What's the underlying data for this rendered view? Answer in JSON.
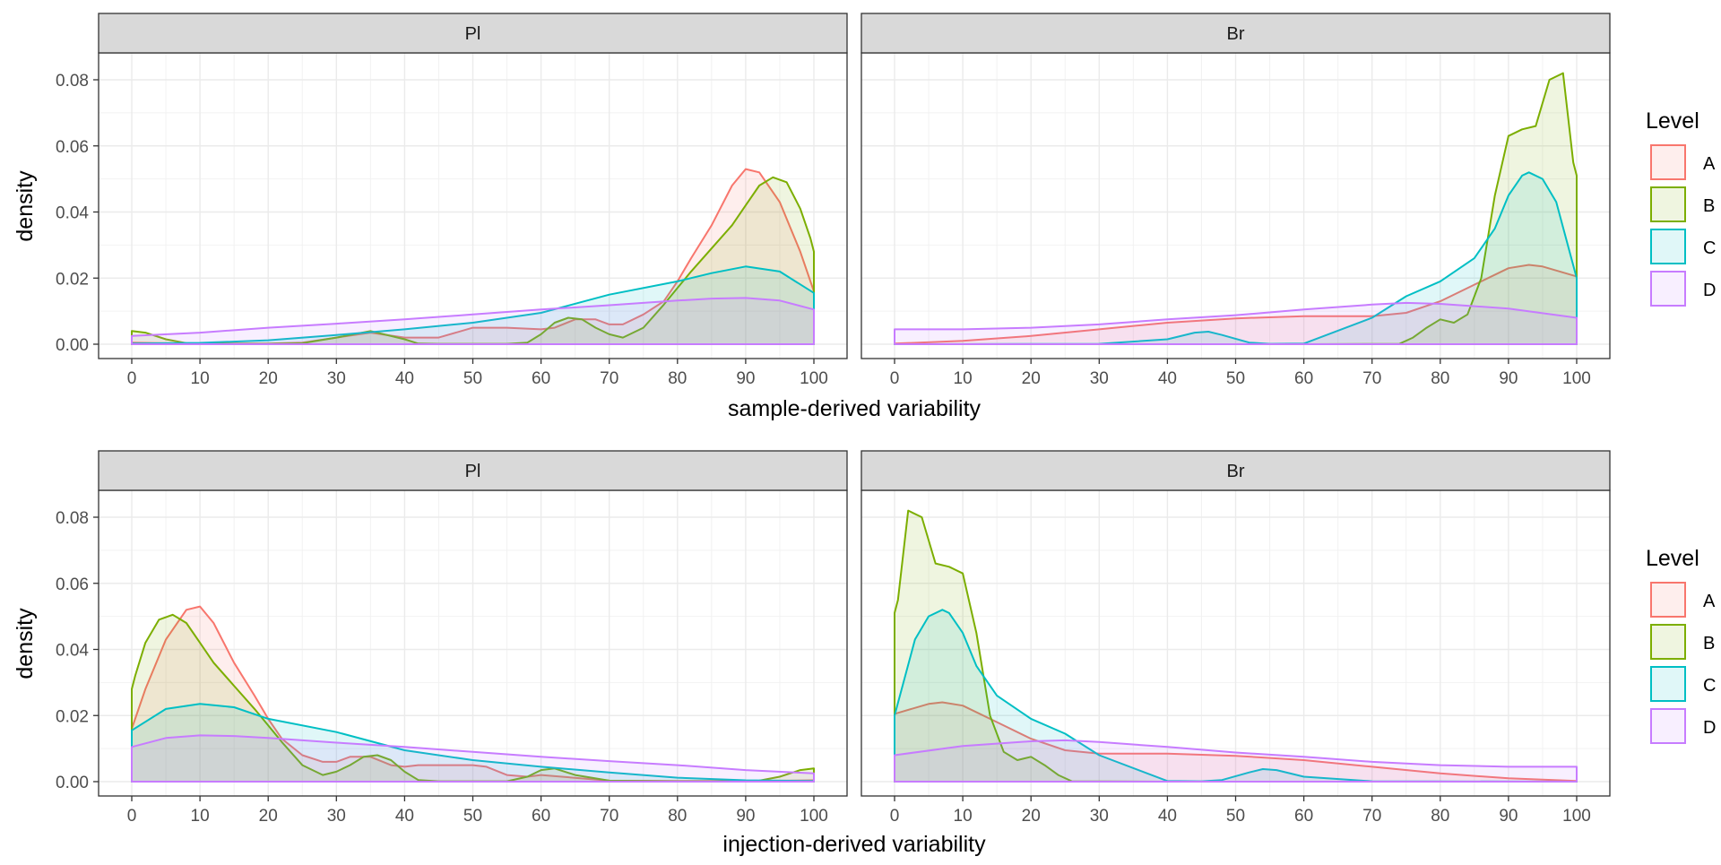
{
  "chart_data": [
    {
      "type": "area",
      "subtype": "density",
      "panels": [
        "Pl",
        "Br"
      ],
      "xlabel": "sample-derived variability",
      "ylabel": "density",
      "xlim": [
        0,
        100
      ],
      "ylim": [
        0,
        0.085
      ],
      "x_ticks": [
        0,
        10,
        20,
        30,
        40,
        50,
        60,
        70,
        80,
        90,
        100
      ],
      "y_ticks": [
        "0.00",
        "0.02",
        "0.04",
        "0.06",
        "0.08"
      ],
      "grid": true,
      "legend_title": "Level",
      "legend_position": "right",
      "series": {
        "Pl": [
          {
            "name": "A",
            "x": [
              0,
              5,
              10,
              20,
              25,
              30,
              35,
              40,
              45,
              50,
              55,
              60,
              62,
              65,
              68,
              70,
              72,
              75,
              78,
              80,
              82,
              85,
              88,
              90,
              92,
              95,
              98,
              100
            ],
            "y": [
              0.0005,
              0.0003,
              0.0002,
              0.0002,
              0.0005,
              0.002,
              0.0035,
              0.002,
              0.002,
              0.005,
              0.005,
              0.0045,
              0.005,
              0.0075,
              0.0075,
              0.006,
              0.006,
              0.009,
              0.013,
              0.019,
              0.026,
              0.036,
              0.048,
              0.053,
              0.052,
              0.043,
              0.028,
              0.016
            ]
          },
          {
            "name": "B",
            "x": [
              0,
              2,
              5,
              8,
              10,
              15,
              20,
              25,
              30,
              35,
              40,
              42,
              45,
              50,
              55,
              58,
              60,
              62,
              64,
              66,
              68,
              70,
              72,
              75,
              78,
              80,
              82,
              85,
              88,
              90,
              92,
              94,
              96,
              98,
              99.5,
              100
            ],
            "y": [
              0.004,
              0.0035,
              0.0015,
              0.0003,
              0.0002,
              0.0001,
              0.0001,
              0.0003,
              0.002,
              0.004,
              0.0015,
              0.0002,
              0.0001,
              0.0001,
              0.0001,
              0.0005,
              0.003,
              0.0065,
              0.008,
              0.0075,
              0.005,
              0.003,
              0.002,
              0.005,
              0.012,
              0.017,
              0.022,
              0.029,
              0.036,
              0.042,
              0.048,
              0.0505,
              0.049,
              0.041,
              0.032,
              0.028
            ]
          },
          {
            "name": "C",
            "x": [
              0,
              10,
              20,
              30,
              40,
              50,
              60,
              70,
              80,
              85,
              90,
              95,
              100
            ],
            "y": [
              0.0002,
              0.0004,
              0.0012,
              0.0028,
              0.0045,
              0.0065,
              0.0095,
              0.015,
              0.019,
              0.0215,
              0.0235,
              0.022,
              0.0155
            ]
          },
          {
            "name": "D",
            "x": [
              0,
              10,
              20,
              30,
              40,
              50,
              60,
              70,
              80,
              85,
              90,
              95,
              100
            ],
            "y": [
              0.0025,
              0.0035,
              0.005,
              0.0062,
              0.0075,
              0.009,
              0.0105,
              0.0118,
              0.0132,
              0.0138,
              0.014,
              0.0132,
              0.0105
            ]
          }
        ],
        "Br": [
          {
            "name": "A",
            "x": [
              0,
              10,
              20,
              30,
              40,
              50,
              60,
              70,
              75,
              80,
              85,
              90,
              93,
              95,
              100
            ],
            "y": [
              0.0002,
              0.001,
              0.0025,
              0.0045,
              0.0065,
              0.0078,
              0.0085,
              0.0085,
              0.0095,
              0.013,
              0.018,
              0.023,
              0.024,
              0.0235,
              0.0205
            ]
          },
          {
            "name": "B",
            "x": [
              0,
              60,
              74,
              76,
              78,
              80,
              82,
              84,
              86,
              88,
              90,
              92,
              94,
              96,
              98,
              99.5,
              100
            ],
            "y": [
              0,
              0,
              0.0001,
              0.002,
              0.005,
              0.0075,
              0.0065,
              0.009,
              0.02,
              0.045,
              0.063,
              0.065,
              0.066,
              0.08,
              0.082,
              0.055,
              0.051
            ]
          },
          {
            "name": "C",
            "x": [
              0,
              30,
              40,
              44,
              46,
              48,
              52,
              55,
              60,
              70,
              75,
              80,
              85,
              88,
              90,
              92,
              93,
              95,
              97,
              100
            ],
            "y": [
              0,
              0.0001,
              0.0015,
              0.0035,
              0.0038,
              0.0028,
              0.0005,
              0.0001,
              0.0002,
              0.008,
              0.0145,
              0.019,
              0.026,
              0.035,
              0.045,
              0.051,
              0.052,
              0.05,
              0.043,
              0.02
            ]
          },
          {
            "name": "D",
            "x": [
              0,
              10,
              20,
              30,
              40,
              50,
              60,
              70,
              75,
              80,
              90,
              100
            ],
            "y": [
              0.0045,
              0.0045,
              0.005,
              0.006,
              0.0075,
              0.0088,
              0.0105,
              0.012,
              0.0125,
              0.0122,
              0.0108,
              0.008
            ]
          }
        ]
      }
    },
    {
      "type": "area",
      "subtype": "density",
      "panels": [
        "Pl",
        "Br"
      ],
      "xlabel": "injection-derived variability",
      "ylabel": "density",
      "xlim": [
        0,
        100
      ],
      "ylim": [
        0,
        0.085
      ],
      "x_ticks": [
        0,
        10,
        20,
        30,
        40,
        50,
        60,
        70,
        80,
        90,
        100
      ],
      "y_ticks": [
        "0.00",
        "0.02",
        "0.04",
        "0.06",
        "0.08"
      ],
      "grid": true,
      "legend_title": "Level",
      "legend_position": "right",
      "series": {
        "Pl": [
          {
            "name": "A",
            "x": [
              0,
              2,
              5,
              8,
              10,
              12,
              15,
              18,
              20,
              22,
              25,
              28,
              30,
              32,
              35,
              38,
              40,
              42,
              45,
              50,
              52,
              55,
              58,
              60,
              70,
              80,
              90,
              100
            ],
            "y": [
              0.016,
              0.028,
              0.043,
              0.052,
              0.053,
              0.048,
              0.036,
              0.026,
              0.019,
              0.013,
              0.008,
              0.006,
              0.006,
              0.0075,
              0.0075,
              0.005,
              0.0045,
              0.005,
              0.005,
              0.005,
              0.0045,
              0.002,
              0.0015,
              0.002,
              0.0003,
              0.0002,
              0.0002,
              0.0004
            ]
          },
          {
            "name": "B",
            "x": [
              0,
              0.5,
              2,
              4,
              6,
              8,
              10,
              12,
              15,
              18,
              20,
              22,
              25,
              28,
              30,
              32,
              34,
              36,
              38,
              40,
              42,
              45,
              50,
              55,
              58,
              60,
              62,
              65,
              70,
              80,
              90,
              92,
              95,
              98,
              100
            ],
            "y": [
              0.028,
              0.032,
              0.042,
              0.049,
              0.0505,
              0.048,
              0.042,
              0.036,
              0.029,
              0.022,
              0.017,
              0.012,
              0.005,
              0.002,
              0.003,
              0.005,
              0.0075,
              0.008,
              0.0065,
              0.003,
              0.0005,
              0.0001,
              0.0001,
              0.0001,
              0.0015,
              0.0035,
              0.004,
              0.002,
              0.0003,
              0.0001,
              0.0001,
              0.0003,
              0.0015,
              0.0035,
              0.004
            ]
          },
          {
            "name": "C",
            "x": [
              0,
              5,
              10,
              15,
              20,
              30,
              40,
              50,
              60,
              70,
              80,
              90,
              100
            ],
            "y": [
              0.0155,
              0.022,
              0.0235,
              0.0225,
              0.019,
              0.015,
              0.0095,
              0.0065,
              0.0045,
              0.0028,
              0.0012,
              0.0004,
              0.0002
            ]
          },
          {
            "name": "D",
            "x": [
              0,
              5,
              10,
              15,
              20,
              30,
              40,
              50,
              60,
              70,
              80,
              90,
              100
            ],
            "y": [
              0.0105,
              0.0132,
              0.014,
              0.0138,
              0.0132,
              0.0118,
              0.0105,
              0.009,
              0.0075,
              0.0062,
              0.005,
              0.0035,
              0.0025
            ]
          }
        ],
        "Br": [
          {
            "name": "A",
            "x": [
              0,
              5,
              7,
              10,
              15,
              20,
              25,
              30,
              40,
              50,
              60,
              70,
              80,
              90,
              100
            ],
            "y": [
              0.0205,
              0.0235,
              0.024,
              0.023,
              0.018,
              0.013,
              0.0095,
              0.0085,
              0.0085,
              0.0078,
              0.0065,
              0.0045,
              0.0025,
              0.001,
              0.0002
            ]
          },
          {
            "name": "B",
            "x": [
              0,
              0.5,
              2,
              4,
              6,
              8,
              10,
              12,
              14,
              16,
              18,
              20,
              22,
              24,
              26,
              40,
              100
            ],
            "y": [
              0.051,
              0.055,
              0.082,
              0.08,
              0.066,
              0.065,
              0.063,
              0.045,
              0.02,
              0.009,
              0.0065,
              0.0075,
              0.005,
              0.002,
              0.0001,
              0,
              0
            ]
          },
          {
            "name": "C",
            "x": [
              0,
              3,
              5,
              7,
              8,
              10,
              12,
              15,
              20,
              25,
              30,
              40,
              45,
              48,
              52,
              54,
              56,
              60,
              70,
              100
            ],
            "y": [
              0.02,
              0.043,
              0.05,
              0.052,
              0.051,
              0.045,
              0.035,
              0.026,
              0.019,
              0.0145,
              0.008,
              0.0002,
              0.0001,
              0.0005,
              0.0028,
              0.0038,
              0.0035,
              0.0015,
              0.0001,
              0
            ]
          },
          {
            "name": "D",
            "x": [
              0,
              10,
              20,
              25,
              30,
              40,
              50,
              60,
              70,
              80,
              90,
              100
            ],
            "y": [
              0.008,
              0.0108,
              0.0122,
              0.0125,
              0.012,
              0.0105,
              0.0088,
              0.0075,
              0.006,
              0.005,
              0.0045,
              0.0045
            ]
          }
        ]
      }
    }
  ],
  "legend": {
    "title": "Level",
    "items": [
      {
        "name": "A",
        "color": "#F8766D"
      },
      {
        "name": "B",
        "color": "#7CAE00"
      },
      {
        "name": "C",
        "color": "#00BFC4"
      },
      {
        "name": "D",
        "color": "#C77CFF"
      }
    ]
  }
}
